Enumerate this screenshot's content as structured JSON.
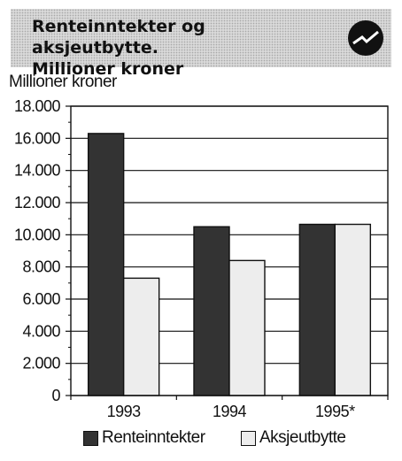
{
  "header": {
    "title_line1": "Renteinntekter og aksjeutbytte.",
    "title_line2": "Millioner kroner",
    "logo_icon": "lightning-circle-icon"
  },
  "colors": {
    "series1": "#333333",
    "series2": "#ededed",
    "title_band": "#d9d9d9"
  },
  "chart_data": {
    "type": "bar",
    "title": "Renteinntekter og aksjeutbytte. Millioner kroner",
    "ylabel": "Millioner kroner",
    "xlabel": "",
    "categories": [
      "1993",
      "1994",
      "1995*"
    ],
    "series": [
      {
        "name": "Renteinntekter",
        "values": [
          16300,
          10500,
          10650
        ]
      },
      {
        "name": "Aksjeutbytte",
        "values": [
          7300,
          8400,
          10650
        ]
      }
    ],
    "ylim": [
      0,
      18000
    ],
    "yticks": [
      0,
      2000,
      4000,
      6000,
      8000,
      10000,
      12000,
      14000,
      16000,
      18000
    ],
    "ytick_labels": [
      "0",
      "2.000",
      "4.000",
      "6.000",
      "8.000",
      "10.000",
      "12.000",
      "14.000",
      "16.000",
      "18.000"
    ],
    "grid": true,
    "legend": "bottom"
  }
}
